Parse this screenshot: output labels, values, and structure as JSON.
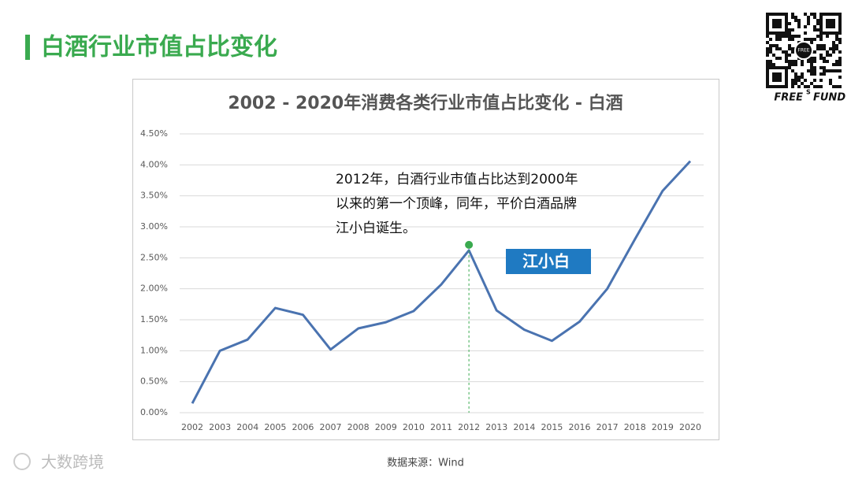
{
  "header": {
    "title": "白酒行业市值占比变化"
  },
  "brand": {
    "qr_label": "FREE",
    "name": "FREE",
    "name_sup": "S",
    "name_end": "FUND"
  },
  "watermark": "大数跨境",
  "source": "数据来源：Wind",
  "chart_data": {
    "type": "line",
    "title": "2002 - 2020年消费各类行业市值占比变化 - 白酒",
    "categories": [
      "2002",
      "2003",
      "2004",
      "2005",
      "2006",
      "2007",
      "2008",
      "2009",
      "2010",
      "2011",
      "2012",
      "2013",
      "2014",
      "2015",
      "2016",
      "2017",
      "2018",
      "2019",
      "2020"
    ],
    "series": [
      {
        "name": "白酒",
        "color": "#4a73b0",
        "values": [
          0.15,
          1.0,
          1.18,
          1.69,
          1.58,
          1.02,
          1.36,
          1.46,
          1.64,
          2.07,
          2.62,
          1.65,
          1.34,
          1.16,
          1.47,
          2.0,
          2.8,
          3.58,
          4.06
        ]
      }
    ],
    "ylim": [
      0,
      4.5
    ],
    "yticks": [
      {
        "value": 0,
        "label": "0.00%"
      },
      {
        "value": 0.5,
        "label": "0.50%"
      },
      {
        "value": 1,
        "label": "1.00%"
      },
      {
        "value": 1.5,
        "label": "1.50%"
      },
      {
        "value": 2,
        "label": "2.00%"
      },
      {
        "value": 2.5,
        "label": "2.50%"
      },
      {
        "value": 3,
        "label": "3.00%"
      },
      {
        "value": 3.5,
        "label": "3.50%"
      },
      {
        "value": 4,
        "label": "4.00%"
      },
      {
        "value": 4.5,
        "label": "4.50%"
      }
    ],
    "grid": true,
    "highlight_category": "2012",
    "highlight_color": "#3aaa4f",
    "annotation": [
      "2012年，白酒行业市值占比达到2000年",
      "以来的第一个顶峰，同年，平价白酒品牌",
      "江小白诞生。"
    ],
    "logo_text": "江小白"
  }
}
